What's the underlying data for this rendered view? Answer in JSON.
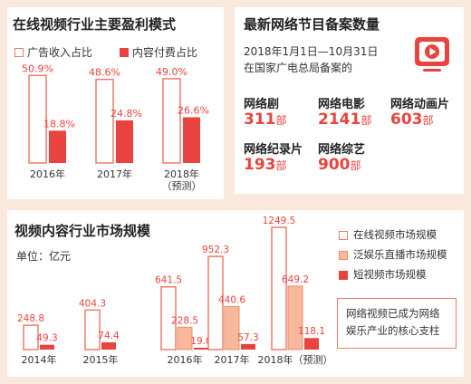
{
  "colors": {
    "background": "#fbe8dc",
    "ad_border": "#f07a6a",
    "paid": "#e8433e",
    "pan": "#f7b89c",
    "pan_border": "#e98d6c",
    "short": "#e8433e",
    "value_text": "#e8433e"
  },
  "left_panel": {
    "title": "在线视频行业主要盈利模式",
    "legend_ad": "广告收入占比",
    "legend_paid": "内容付费占比"
  },
  "right_panel": {
    "title": "最新网络节目备案数量",
    "subtitle_1": "2018年1月1日—10月31日",
    "subtitle_2": "在国家广电总局备案的",
    "icon": "video-play-icon",
    "unit": "部",
    "stats": [
      {
        "label": "网络剧",
        "value": "311"
      },
      {
        "label": "网络电影",
        "value": "2141"
      },
      {
        "label": "网络动画片",
        "value": "603"
      },
      {
        "label": "网络纪录片",
        "value": "193"
      },
      {
        "label": "网络综艺",
        "value": "900"
      }
    ]
  },
  "bottom_panel": {
    "title": "视频内容行业市场规模",
    "unit_label": "单位：亿元",
    "legend": [
      "在线视频市场规模",
      "泛娱乐直播市场规模",
      "短视频市场规模"
    ],
    "note_1": "网络视频已成为网络",
    "note_2": "娱乐产业的核心支柱"
  },
  "chart_data": [
    {
      "type": "bar",
      "title": "在线视频行业主要盈利模式",
      "categories": [
        "2016年",
        "2017年",
        "2018年\n（预测）"
      ],
      "series": [
        {
          "name": "广告收入占比",
          "values": [
            50.9,
            48.6,
            49.0
          ],
          "labels": [
            "50.9%",
            "48.6%",
            "49.0%"
          ]
        },
        {
          "name": "内容付费占比",
          "values": [
            18.8,
            24.8,
            26.6
          ],
          "labels": [
            "18.8%",
            "24.8%",
            "26.6%"
          ]
        }
      ]
    },
    {
      "type": "bar",
      "title": "视频内容行业市场规模",
      "ylabel": "单位：亿元",
      "categories": [
        "2014年",
        "2015年",
        "2016年",
        "2017年",
        "2018年（预测）"
      ],
      "series": [
        {
          "name": "在线视频市场规模",
          "values": [
            248.8,
            404.3,
            641.5,
            952.3,
            1249.5
          ],
          "labels": [
            "248.8",
            "404.3",
            "641.5",
            "952.3",
            "1249.5"
          ]
        },
        {
          "name": "泛娱乐直播市场规模",
          "values": [
            null,
            null,
            228.5,
            440.6,
            649.2
          ],
          "labels": [
            "",
            "",
            "228.5",
            "440.6",
            "649.2"
          ]
        },
        {
          "name": "短视频市场规模",
          "values": [
            49.3,
            74.4,
            19.0,
            57.3,
            118.1
          ],
          "labels": [
            "49.3",
            "74.4",
            "19.0",
            "57.3",
            "118.1"
          ]
        }
      ]
    }
  ]
}
